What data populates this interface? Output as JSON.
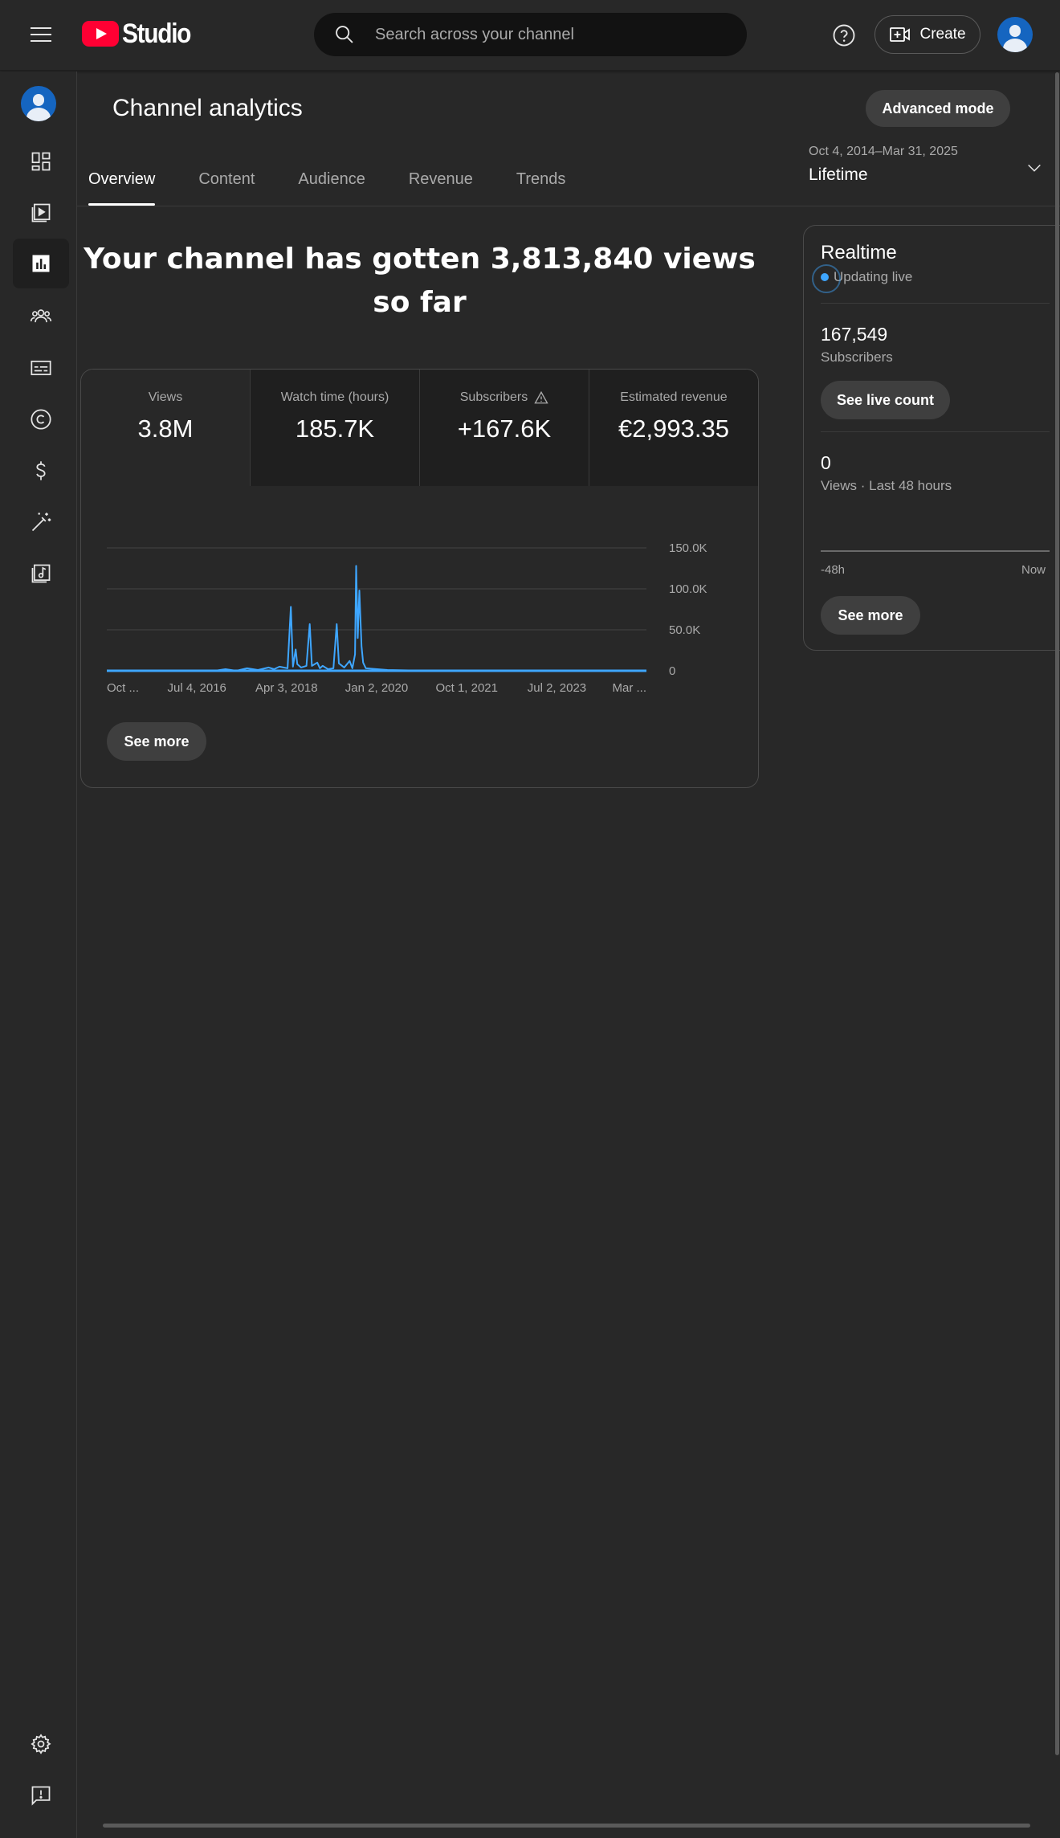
{
  "app": {
    "logo_text": "Studio"
  },
  "search": {
    "placeholder": "Search across your channel"
  },
  "topbar": {
    "create_label": "Create"
  },
  "sidebar": {
    "items": [
      {
        "name": "dashboard",
        "icon": "dashboard-icon"
      },
      {
        "name": "content",
        "icon": "content-icon"
      },
      {
        "name": "analytics",
        "icon": "analytics-icon",
        "active": true
      },
      {
        "name": "community",
        "icon": "community-icon"
      },
      {
        "name": "subtitles",
        "icon": "subtitles-icon"
      },
      {
        "name": "copyright",
        "icon": "copyright-icon"
      },
      {
        "name": "earn",
        "icon": "earn-icon"
      },
      {
        "name": "customization",
        "icon": "magic-wand-icon"
      },
      {
        "name": "audio-library",
        "icon": "audio-library-icon"
      }
    ],
    "bottom": [
      {
        "name": "settings",
        "icon": "gear-icon"
      },
      {
        "name": "feedback",
        "icon": "feedback-icon"
      }
    ]
  },
  "header": {
    "title": "Channel analytics",
    "advanced_mode": "Advanced mode",
    "tabs": [
      {
        "label": "Overview",
        "active": true
      },
      {
        "label": "Content"
      },
      {
        "label": "Audience"
      },
      {
        "label": "Revenue"
      },
      {
        "label": "Trends"
      }
    ],
    "date_range": "Oct 4, 2014–Mar 31, 2025",
    "date_label": "Lifetime"
  },
  "headline": "Your channel has gotten 3,813,840 views so far",
  "metrics": [
    {
      "label": "Views",
      "value": "3.8M"
    },
    {
      "label": "Watch time (hours)",
      "value": "185.7K"
    },
    {
      "label": "Subscribers",
      "value": "+167.6K",
      "warning": true
    },
    {
      "label": "Estimated revenue",
      "value": "€2,993.35"
    }
  ],
  "chart_data": {
    "type": "line",
    "x_tick_labels": [
      "Oct ...",
      "Jul 4, 2016",
      "Apr 3, 2018",
      "Jan 2, 2020",
      "Oct 1, 2021",
      "Jul 2, 2023",
      "Mar ..."
    ],
    "y_tick_labels": [
      "150.0K",
      "100.0K",
      "50.0K",
      "0"
    ],
    "ylim": [
      0,
      150000
    ],
    "series": [
      {
        "color": "#3ea6ff",
        "points": [
          [
            0.0,
            0
          ],
          [
            0.2,
            0
          ],
          [
            0.22,
            2000
          ],
          [
            0.24,
            0
          ],
          [
            0.26,
            3000
          ],
          [
            0.28,
            1000
          ],
          [
            0.3,
            4000
          ],
          [
            0.31,
            2000
          ],
          [
            0.32,
            5000
          ],
          [
            0.335,
            3000
          ],
          [
            0.341,
            78000
          ],
          [
            0.345,
            5000
          ],
          [
            0.35,
            26000
          ],
          [
            0.353,
            8000
          ],
          [
            0.36,
            4000
          ],
          [
            0.37,
            6000
          ],
          [
            0.376,
            57000
          ],
          [
            0.38,
            6000
          ],
          [
            0.39,
            10000
          ],
          [
            0.395,
            3000
          ],
          [
            0.4,
            6000
          ],
          [
            0.41,
            2000
          ],
          [
            0.42,
            3000
          ],
          [
            0.426,
            57000
          ],
          [
            0.43,
            9000
          ],
          [
            0.44,
            4000
          ],
          [
            0.45,
            12000
          ],
          [
            0.455,
            3000
          ],
          [
            0.46,
            20000
          ],
          [
            0.462,
            128000
          ],
          [
            0.465,
            40000
          ],
          [
            0.468,
            98000
          ],
          [
            0.472,
            30000
          ],
          [
            0.475,
            10000
          ],
          [
            0.48,
            3000
          ],
          [
            0.52,
            1000
          ],
          [
            0.6,
            0
          ],
          [
            1.0,
            0
          ]
        ]
      }
    ],
    "grid": true
  },
  "card": {
    "see_more": "See more"
  },
  "realtime": {
    "title": "Realtime",
    "status": "Updating live",
    "subscribers_value": "167,549",
    "subscribers_label": "Subscribers",
    "see_live_count": "See live count",
    "views_value": "0",
    "views_label": "Views · Last 48 hours",
    "axis_start": "-48h",
    "axis_end": "Now",
    "see_more": "See more"
  }
}
